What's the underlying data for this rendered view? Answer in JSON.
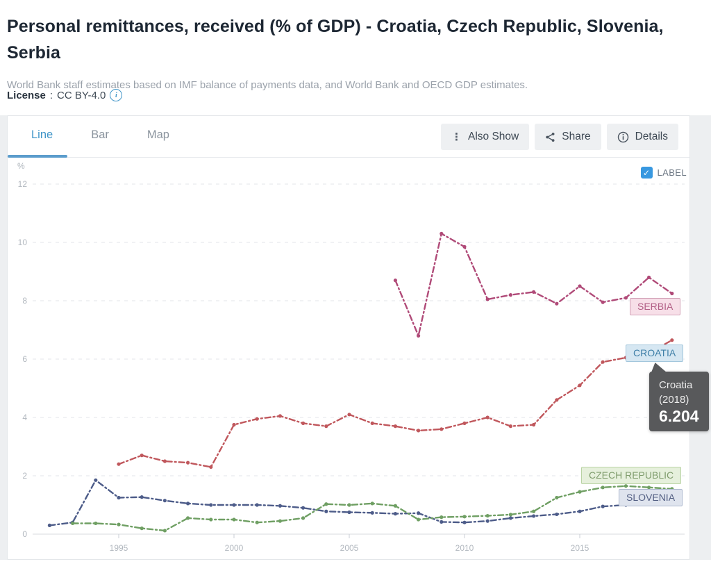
{
  "header": {
    "title": "Personal remittances, received (% of GDP) - Croatia, Czech Republic, Slovenia, Serbia",
    "subtitle": "World Bank staff estimates based on IMF balance of payments data, and World Bank and OECD GDP estimates.",
    "license_label": "License",
    "license_separator": ":",
    "license_value": "CC BY-4.0"
  },
  "toolbar": {
    "tabs": [
      {
        "label": "Line",
        "active": true
      },
      {
        "label": "Bar",
        "active": false
      },
      {
        "label": "Map",
        "active": false
      }
    ],
    "also_show_label": "Also Show",
    "share_label": "Share",
    "details_label": "Details"
  },
  "legend": {
    "label": "LABEL",
    "checked": true,
    "checkbox_color": "#3898e0",
    "checkmark": "✓"
  },
  "theme": {
    "accent_blue": "#4095c8",
    "grid_color": "#e3e6ea",
    "axis_color": "#d8dbdf",
    "tick_text_color": "#b2b8bf"
  },
  "chart_data": {
    "type": "line",
    "unit": "%",
    "x_ticks": [
      1995,
      2000,
      2005,
      2010,
      2015
    ],
    "y_ticks": [
      0,
      2,
      4,
      6,
      8,
      10,
      12
    ],
    "x_range": [
      1992,
      2019
    ],
    "ylim": [
      0,
      12.6
    ],
    "grid": "dashed-horizontal",
    "legend_position": "labels-on-lines",
    "series": [
      {
        "name": "Croatia",
        "label": "CROATIA",
        "color": "#c0575c",
        "label_bg": "#d6e7f2",
        "label_border": "#a3c6dc",
        "label_text": "#4080a8",
        "points": [
          [
            1995,
            2.4
          ],
          [
            1996,
            2.7
          ],
          [
            1997,
            2.5
          ],
          [
            1998,
            2.45
          ],
          [
            1999,
            2.3
          ],
          [
            2000,
            3.75
          ],
          [
            2001,
            3.95
          ],
          [
            2002,
            4.05
          ],
          [
            2003,
            3.8
          ],
          [
            2004,
            3.7
          ],
          [
            2005,
            4.1
          ],
          [
            2006,
            3.8
          ],
          [
            2007,
            3.7
          ],
          [
            2008,
            3.55
          ],
          [
            2009,
            3.6
          ],
          [
            2010,
            3.8
          ],
          [
            2011,
            4.0
          ],
          [
            2012,
            3.7
          ],
          [
            2013,
            3.75
          ],
          [
            2014,
            4.6
          ],
          [
            2015,
            5.1
          ],
          [
            2016,
            5.9
          ],
          [
            2017,
            6.05
          ],
          [
            2018,
            6.204
          ],
          [
            2019,
            6.65
          ]
        ]
      },
      {
        "name": "Serbia",
        "label": "SERBIA",
        "color": "#b04a78",
        "label_bg": "#f7dfe8",
        "label_border": "#d3a2b7",
        "label_text": "#b25f86",
        "points": [
          [
            2007,
            8.7
          ],
          [
            2008,
            6.8
          ],
          [
            2009,
            10.3
          ],
          [
            2010,
            9.85
          ],
          [
            2011,
            8.05
          ],
          [
            2012,
            8.2
          ],
          [
            2013,
            8.3
          ],
          [
            2014,
            7.9
          ],
          [
            2015,
            8.5
          ],
          [
            2016,
            7.95
          ],
          [
            2017,
            8.1
          ],
          [
            2018,
            8.8
          ],
          [
            2019,
            8.25
          ]
        ]
      },
      {
        "name": "Slovenia",
        "label": "SLOVENIA",
        "color": "#4d5c89",
        "label_bg": "#dfe4ee",
        "label_border": "#aeb9cf",
        "label_text": "#535f83",
        "points": [
          [
            1992,
            0.3
          ],
          [
            1993,
            0.4
          ],
          [
            1994,
            1.85
          ],
          [
            1995,
            1.25
          ],
          [
            1996,
            1.27
          ],
          [
            1997,
            1.15
          ],
          [
            1998,
            1.05
          ],
          [
            1999,
            1.0
          ],
          [
            2000,
            1.0
          ],
          [
            2001,
            1.0
          ],
          [
            2002,
            0.97
          ],
          [
            2003,
            0.9
          ],
          [
            2004,
            0.78
          ],
          [
            2005,
            0.75
          ],
          [
            2006,
            0.73
          ],
          [
            2007,
            0.7
          ],
          [
            2008,
            0.72
          ],
          [
            2009,
            0.42
          ],
          [
            2010,
            0.4
          ],
          [
            2011,
            0.45
          ],
          [
            2012,
            0.55
          ],
          [
            2013,
            0.62
          ],
          [
            2014,
            0.68
          ],
          [
            2015,
            0.78
          ],
          [
            2016,
            0.95
          ],
          [
            2017,
            1.0
          ],
          [
            2018,
            1.08
          ],
          [
            2019,
            1.1
          ]
        ]
      },
      {
        "name": "Czech Republic",
        "label": "CZECH REPUBLIC",
        "color": "#6f9f63",
        "label_bg": "#e6f0dc",
        "label_border": "#b9d3a4",
        "label_text": "#7f9c6c",
        "points": [
          [
            1993,
            0.37
          ],
          [
            1994,
            0.37
          ],
          [
            1995,
            0.33
          ],
          [
            1996,
            0.2
          ],
          [
            1997,
            0.12
          ],
          [
            1998,
            0.55
          ],
          [
            1999,
            0.5
          ],
          [
            2000,
            0.5
          ],
          [
            2001,
            0.4
          ],
          [
            2002,
            0.45
          ],
          [
            2003,
            0.55
          ],
          [
            2004,
            1.03
          ],
          [
            2005,
            1.0
          ],
          [
            2006,
            1.05
          ],
          [
            2007,
            0.97
          ],
          [
            2008,
            0.5
          ],
          [
            2009,
            0.58
          ],
          [
            2010,
            0.6
          ],
          [
            2011,
            0.63
          ],
          [
            2012,
            0.67
          ],
          [
            2013,
            0.78
          ],
          [
            2014,
            1.25
          ],
          [
            2015,
            1.45
          ],
          [
            2016,
            1.6
          ],
          [
            2017,
            1.65
          ],
          [
            2018,
            1.6
          ],
          [
            2019,
            1.55
          ]
        ]
      }
    ],
    "tooltip": {
      "country": "Croatia",
      "year": "(2018)",
      "value": "6.204"
    }
  }
}
